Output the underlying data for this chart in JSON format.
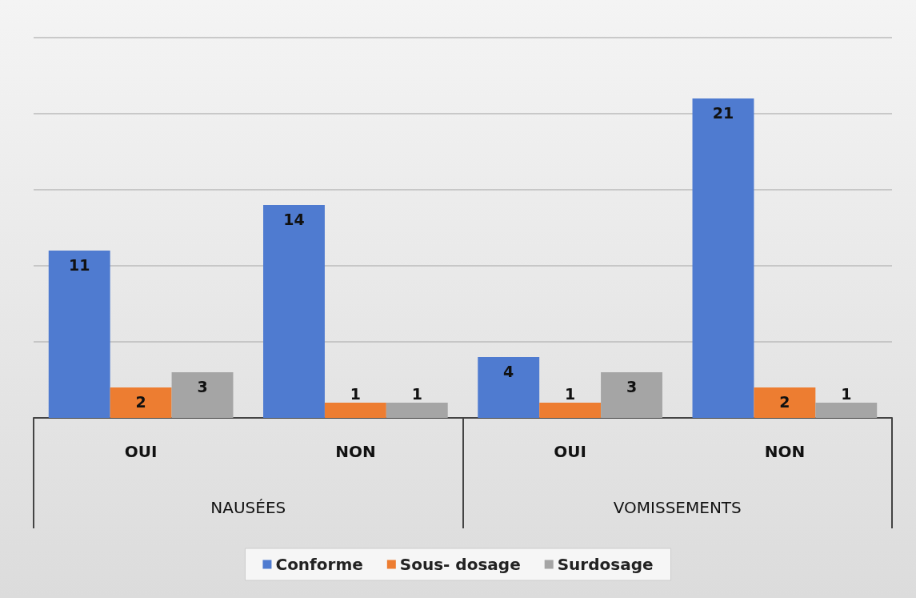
{
  "chart_data": {
    "type": "bar",
    "categories": [
      "OUI",
      "NON",
      "OUI",
      "NON"
    ],
    "series": [
      {
        "name": "Conforme",
        "color": "#4f7bd0",
        "values": [
          11,
          14,
          4,
          21
        ]
      },
      {
        "name": "Sous- dosage",
        "color": "#ed7d31",
        "values": [
          2,
          1,
          1,
          2
        ]
      },
      {
        "name": "Surdosage",
        "color": "#a5a5a5",
        "values": [
          3,
          1,
          3,
          1
        ]
      }
    ],
    "annotations": [
      "NAUSÉES",
      "VOMISSEMENTS"
    ],
    "ylim": [
      0,
      25
    ],
    "yticks": [
      {
        "value": 0,
        "label": null
      },
      {
        "value": 5,
        "label": null
      },
      {
        "value": 10,
        "label": null
      },
      {
        "value": 15,
        "label": null
      },
      {
        "value": 20,
        "label": null
      },
      {
        "value": 25,
        "label": null
      }
    ],
    "tick_labels": "x",
    "grid": "y",
    "data_labels": true,
    "legend": "bottom"
  }
}
